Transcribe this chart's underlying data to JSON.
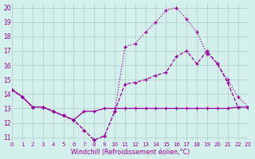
{
  "xlabel": "Windchill (Refroidissement éolien,°C)",
  "background_color": "#d4f0ec",
  "line_color": "#990099",
  "grid_color": "#b0c8c8",
  "hours": [
    0,
    1,
    2,
    3,
    4,
    5,
    6,
    7,
    8,
    9,
    10,
    11,
    12,
    13,
    14,
    15,
    16,
    17,
    18,
    19,
    20,
    21,
    22,
    23
  ],
  "line1": [
    14.3,
    13.8,
    13.1,
    13.1,
    12.8,
    12.5,
    12.2,
    11.5,
    10.8,
    11.1,
    12.8,
    17.3,
    17.5,
    18.3,
    19.0,
    19.8,
    20.0,
    19.2,
    18.3,
    16.8,
    16.1,
    15.0,
    13.8,
    13.1
  ],
  "line2": [
    14.3,
    13.8,
    13.1,
    13.1,
    12.8,
    12.5,
    12.2,
    11.5,
    10.8,
    11.1,
    12.8,
    14.7,
    14.8,
    15.0,
    15.3,
    15.5,
    16.6,
    17.0,
    16.1,
    17.0,
    16.1,
    14.8,
    13.1,
    13.1
  ],
  "line3": [
    14.3,
    13.8,
    13.1,
    13.1,
    12.8,
    12.5,
    12.2,
    12.8,
    12.8,
    13.0,
    13.0,
    13.0,
    13.0,
    13.0,
    13.0,
    13.0,
    13.0,
    13.0,
    13.0,
    13.0,
    13.0,
    13.0,
    13.1,
    13.1
  ],
  "ylim_min": 11,
  "ylim_max": 20,
  "yticks": [
    11,
    12,
    13,
    14,
    15,
    16,
    17,
    18,
    19,
    20
  ],
  "xlim_min": 0,
  "xlim_max": 23,
  "xticks": [
    0,
    1,
    2,
    3,
    4,
    5,
    6,
    7,
    8,
    9,
    10,
    11,
    12,
    13,
    14,
    15,
    16,
    17,
    18,
    19,
    20,
    21,
    22,
    23
  ]
}
